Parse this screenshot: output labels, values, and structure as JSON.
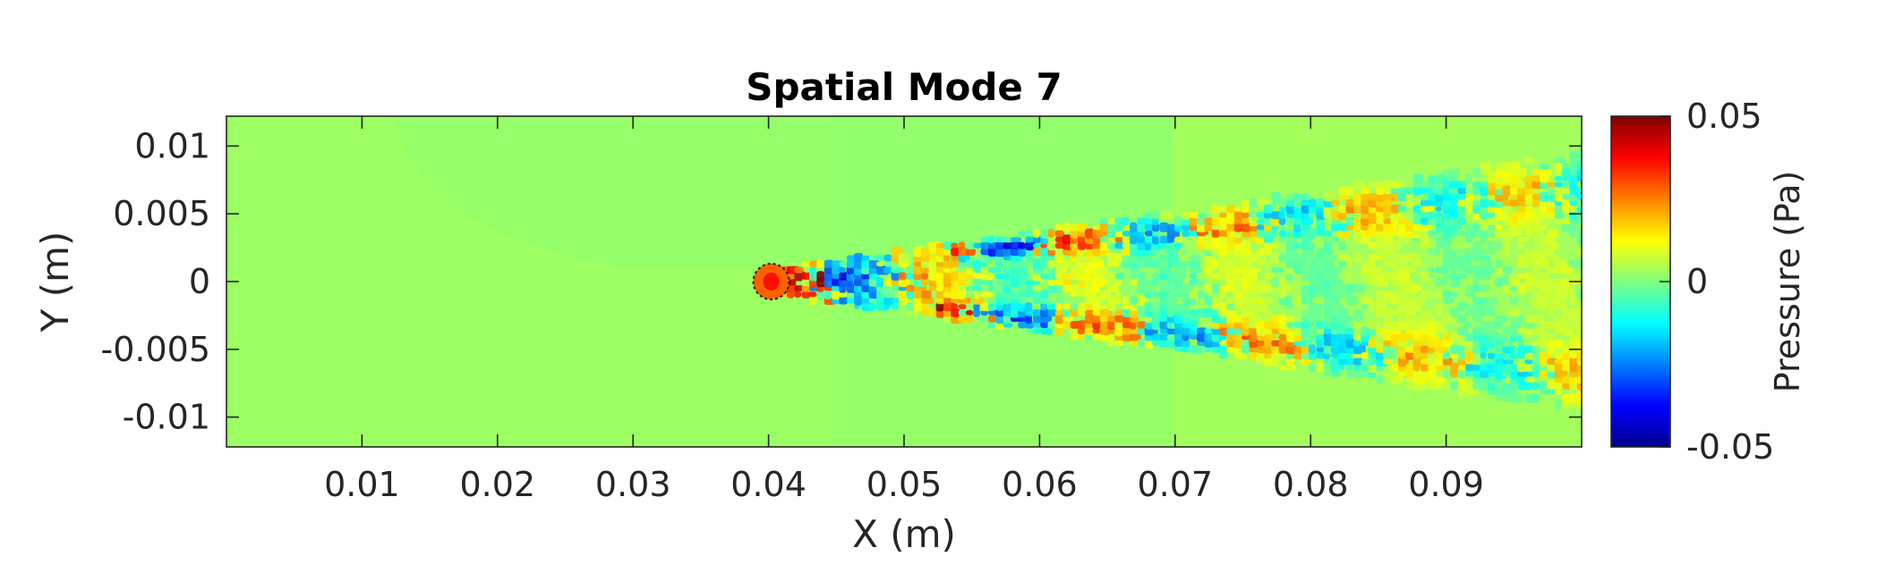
{
  "chart_data": {
    "type": "heatmap",
    "title": "Spatial Mode 7",
    "xlabel": "X (m)",
    "ylabel": "Y (m)",
    "xlim": [
      0,
      0.1
    ],
    "ylim": [
      -0.0122,
      0.0122
    ],
    "x_ticks": [
      {
        "value": 0.01,
        "label": "0.01"
      },
      {
        "value": 0.02,
        "label": "0.02"
      },
      {
        "value": 0.03,
        "label": "0.03"
      },
      {
        "value": 0.04,
        "label": "0.04"
      },
      {
        "value": 0.05,
        "label": "0.05"
      },
      {
        "value": 0.06,
        "label": "0.06"
      },
      {
        "value": 0.07,
        "label": "0.07"
      },
      {
        "value": 0.08,
        "label": "0.08"
      },
      {
        "value": 0.09,
        "label": "0.09"
      }
    ],
    "y_ticks": [
      {
        "value": 0.01,
        "label": "0.01"
      },
      {
        "value": 0.005,
        "label": "0.005"
      },
      {
        "value": 0,
        "label": "0"
      },
      {
        "value": -0.005,
        "label": "-0.005"
      },
      {
        "value": -0.01,
        "label": "-0.01"
      }
    ],
    "colorbar": {
      "label": "Pressure (Pa)",
      "limits": [
        -0.05,
        0.05
      ],
      "colormap": "jet",
      "ticks": [
        {
          "value": 0.05,
          "label": "0.05"
        },
        {
          "value": 0,
          "label": "0"
        },
        {
          "value": -0.05,
          "label": "-0.05"
        }
      ]
    },
    "field": {
      "background_value": 0.0025,
      "obstacle_center": [
        0.0402,
        0
      ],
      "wake_peak_amplitude": 0.05,
      "far_field_amplitude": 0.015
    },
    "grid": false
  }
}
